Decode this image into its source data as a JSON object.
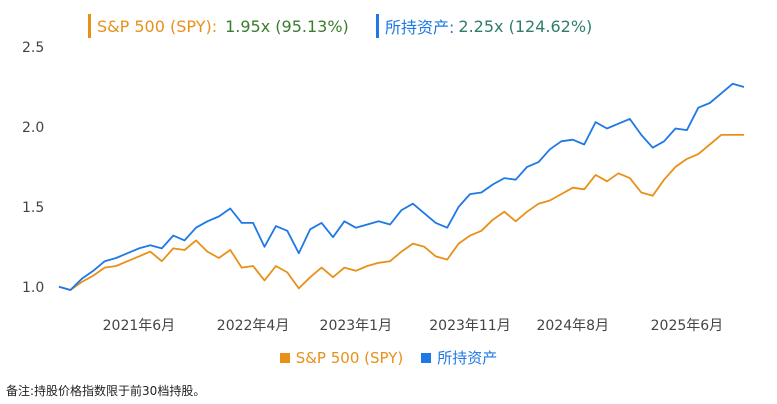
{
  "summary": {
    "spy": {
      "label": "S&P 500 (SPY):",
      "value": "1.95x (95.13%)",
      "color": "#e8901a",
      "value_color": "#3a7d2c"
    },
    "portfolio": {
      "label": "所持资产:",
      "value": "2.25x (124.62%)",
      "color": "#1e78e6",
      "value_color": "#2e7d6b"
    }
  },
  "note": "备注:持股价格指数限于前30档持股。",
  "chart_data": {
    "type": "line",
    "ylim": [
      0.98,
      2.5
    ],
    "yticks": [
      "1.0",
      "1.5",
      "2.0",
      "2.5"
    ],
    "ytick_values": [
      1.0,
      1.5,
      2.0,
      2.5
    ],
    "xtick_labels": [
      "2021年6月",
      "2022年4月",
      "2023年1月",
      "2023年11月",
      "2024年8月",
      "2025年6月"
    ],
    "xtick_index": [
      7,
      17,
      26,
      36,
      45,
      55
    ],
    "grid": false,
    "legend_position": "bottom",
    "series": [
      {
        "name": "S&P 500 (SPY)",
        "color": "#e8901a",
        "values": [
          1.0,
          0.98,
          1.03,
          1.07,
          1.12,
          1.13,
          1.16,
          1.19,
          1.22,
          1.16,
          1.24,
          1.23,
          1.29,
          1.22,
          1.18,
          1.23,
          1.12,
          1.13,
          1.04,
          1.13,
          1.09,
          0.99,
          1.06,
          1.12,
          1.06,
          1.12,
          1.1,
          1.13,
          1.15,
          1.16,
          1.22,
          1.27,
          1.25,
          1.19,
          1.17,
          1.27,
          1.32,
          1.35,
          1.42,
          1.47,
          1.41,
          1.47,
          1.52,
          1.54,
          1.58,
          1.62,
          1.61,
          1.7,
          1.66,
          1.71,
          1.68,
          1.59,
          1.57,
          1.67,
          1.75,
          1.8,
          1.83,
          1.89,
          1.95,
          1.95,
          1.95
        ]
      },
      {
        "name": "所持资产",
        "color": "#1e78e6",
        "values": [
          1.0,
          0.98,
          1.05,
          1.1,
          1.16,
          1.18,
          1.21,
          1.24,
          1.26,
          1.24,
          1.32,
          1.29,
          1.37,
          1.41,
          1.44,
          1.49,
          1.4,
          1.4,
          1.25,
          1.38,
          1.35,
          1.21,
          1.36,
          1.4,
          1.31,
          1.41,
          1.37,
          1.39,
          1.41,
          1.39,
          1.48,
          1.52,
          1.46,
          1.4,
          1.37,
          1.5,
          1.58,
          1.59,
          1.64,
          1.68,
          1.67,
          1.75,
          1.78,
          1.86,
          1.91,
          1.92,
          1.89,
          2.03,
          1.99,
          2.02,
          2.05,
          1.95,
          1.87,
          1.91,
          1.99,
          1.98,
          2.12,
          2.15,
          2.21,
          2.27,
          2.25
        ]
      }
    ]
  }
}
